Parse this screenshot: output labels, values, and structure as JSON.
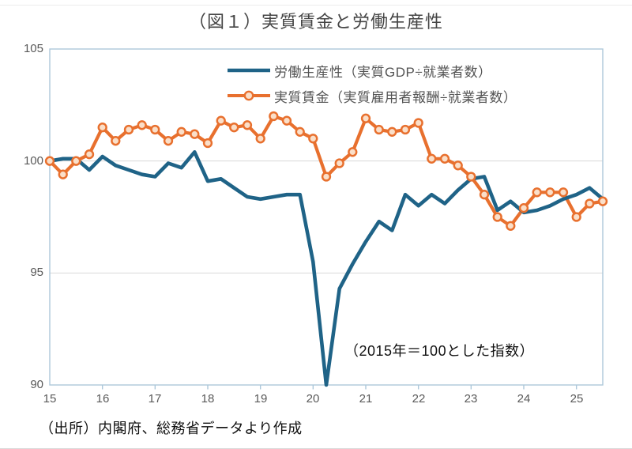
{
  "title": "（図１）実質賃金と労働生産性",
  "annotation": "（2015年＝100とした指数）",
  "source_note": "（出所）内閣府、総務省データより作成",
  "legend": {
    "items": [
      {
        "label": "労働生産性（実質GDP÷就業者数）"
      },
      {
        "label": "実質賃金（実質雇用者報酬÷就業者数）"
      }
    ]
  },
  "axis": {
    "y_labels": [
      "105",
      "100",
      "95",
      "90"
    ],
    "x_labels": [
      "15",
      "16",
      "17",
      "18",
      "19",
      "20",
      "21",
      "22",
      "23",
      "24",
      "25"
    ]
  },
  "colors": {
    "productivity": "#1F6387",
    "wages": "#E8702E",
    "wages_marker_fill": "#FADFC9",
    "grid": "#D9D9D9",
    "frame": "#ADC8DA"
  },
  "chart_data": {
    "type": "line",
    "title": "（図１）実質賃金と労働生産性",
    "index_note": "（2015年＝100とした指数）",
    "ylim": [
      90,
      105
    ],
    "y_ticks": [
      90,
      95,
      100,
      105
    ],
    "y_gridlines": [
      95,
      100
    ],
    "x_tick_labels": [
      "15",
      "16",
      "17",
      "18",
      "19",
      "20",
      "21",
      "22",
      "23",
      "24",
      "25"
    ],
    "frequency": "quarterly",
    "x_quarters": [
      "2015Q1",
      "2015Q2",
      "2015Q3",
      "2015Q4",
      "2016Q1",
      "2016Q2",
      "2016Q3",
      "2016Q4",
      "2017Q1",
      "2017Q2",
      "2017Q3",
      "2017Q4",
      "2018Q1",
      "2018Q2",
      "2018Q3",
      "2018Q4",
      "2019Q1",
      "2019Q2",
      "2019Q3",
      "2019Q4",
      "2020Q1",
      "2020Q2",
      "2020Q3",
      "2020Q4",
      "2021Q1",
      "2021Q2",
      "2021Q3",
      "2021Q4",
      "2022Q1",
      "2022Q2",
      "2022Q3",
      "2022Q4",
      "2023Q1",
      "2023Q2",
      "2023Q3",
      "2023Q4",
      "2024Q1",
      "2024Q2",
      "2024Q3",
      "2024Q4",
      "2025Q1",
      "2025Q2",
      "2025Q3"
    ],
    "series": [
      {
        "name": "労働生産性（実質GDP÷就業者数）",
        "color_key": "productivity",
        "marker": false,
        "values": [
          100.0,
          100.1,
          100.1,
          99.6,
          100.2,
          99.8,
          99.6,
          99.4,
          99.3,
          99.9,
          99.7,
          100.4,
          99.1,
          99.2,
          98.8,
          98.4,
          98.3,
          98.4,
          98.5,
          98.5,
          95.5,
          90.0,
          94.3,
          95.4,
          96.4,
          97.3,
          96.9,
          98.5,
          98.0,
          98.5,
          98.1,
          98.7,
          99.2,
          99.3,
          97.8,
          98.2,
          97.7,
          97.8,
          98.0,
          98.3,
          98.5,
          98.8,
          98.3
        ]
      },
      {
        "name": "実質賃金（実質雇用者報酬÷就業者数）",
        "color_key": "wages",
        "marker": true,
        "values": [
          100.0,
          99.4,
          100.0,
          100.3,
          101.5,
          100.9,
          101.4,
          101.6,
          101.4,
          100.9,
          101.3,
          101.2,
          100.8,
          101.8,
          101.5,
          101.6,
          101.0,
          102.0,
          101.8,
          101.3,
          101.0,
          99.3,
          99.9,
          100.4,
          101.9,
          101.4,
          101.3,
          101.4,
          101.7,
          100.1,
          100.1,
          99.8,
          99.3,
          98.5,
          97.5,
          97.1,
          97.9,
          98.6,
          98.6,
          98.6,
          97.5,
          98.1,
          98.2
        ]
      }
    ]
  }
}
